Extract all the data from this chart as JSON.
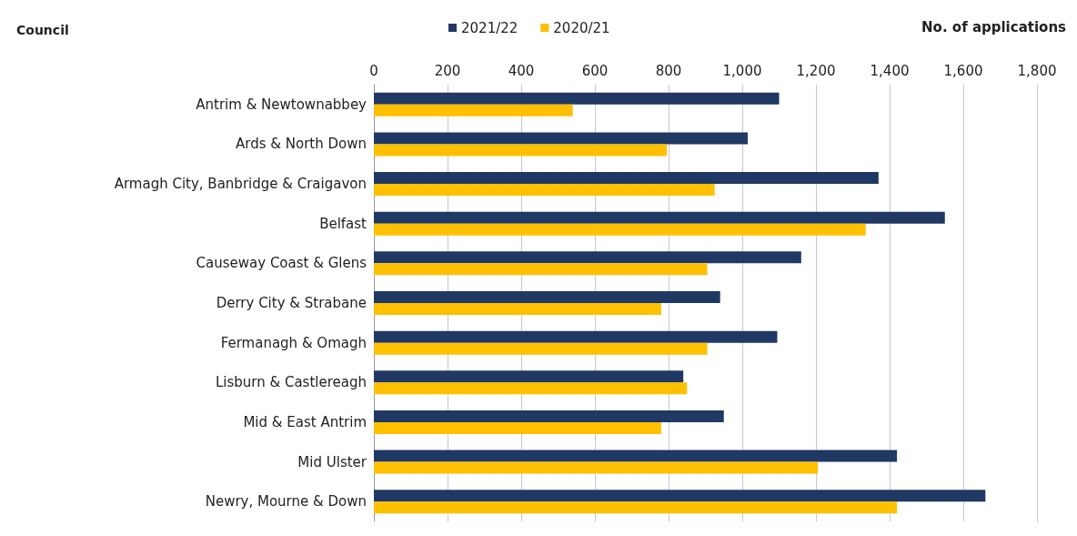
{
  "chart_data": {
    "type": "bar",
    "orientation": "horizontal",
    "ylabel": "Council",
    "xlabel": "No. of applications",
    "categories": [
      "Antrim & Newtownabbey",
      "Ards & North Down",
      "Armagh City, Banbridge & Craigavon",
      "Belfast",
      "Causeway Coast & Glens",
      "Derry City & Strabane",
      "Fermanagh & Omagh",
      "Lisburn & Castlereagh",
      "Mid & East Antrim",
      "Mid Ulster",
      "Newry, Mourne & Down"
    ],
    "series": [
      {
        "name": "2021/22",
        "color": "#203864",
        "values": [
          1100,
          1015,
          1370,
          1550,
          1160,
          940,
          1095,
          840,
          950,
          1420,
          1660
        ]
      },
      {
        "name": "2020/21",
        "color": "#ffc000",
        "values": [
          540,
          795,
          925,
          1335,
          905,
          780,
          905,
          850,
          780,
          1205,
          1420
        ]
      }
    ],
    "xlim": [
      0,
      1800
    ],
    "xticks": [
      0,
      200,
      400,
      600,
      800,
      {
        "value": 1000,
        "label": "1,000"
      },
      {
        "value": 1200,
        "label": "1,200"
      },
      {
        "value": 1400,
        "label": "1,400"
      },
      {
        "value": 1600,
        "label": "1,600"
      },
      {
        "value": 1800,
        "label": "1,800"
      }
    ],
    "grid": "x",
    "legend": "top"
  }
}
